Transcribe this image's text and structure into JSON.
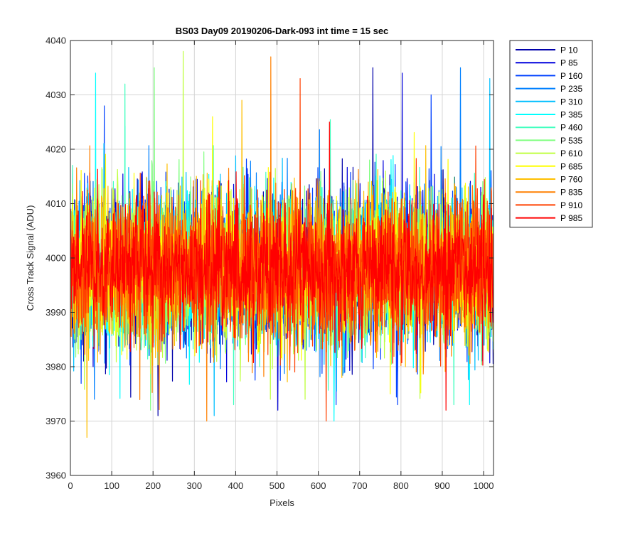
{
  "chart_data": {
    "type": "line",
    "title": "BS03 Day09 20190206-Dark-093 int time = 15 sec",
    "xlabel": "Pixels",
    "ylabel": "Cross Track Signal (ADU)",
    "xlim": [
      0,
      1024
    ],
    "ylim": [
      3960,
      4040
    ],
    "xticks": [
      0,
      100,
      200,
      300,
      400,
      500,
      600,
      700,
      800,
      900,
      1000
    ],
    "yticks": [
      3960,
      3970,
      3980,
      3990,
      4000,
      4010,
      4020,
      4030,
      4040
    ],
    "grid": true,
    "legend_position": "outside-right",
    "x_range": [
      1,
      1024
    ],
    "series": [
      {
        "name": "P 10",
        "color": "#0000aa",
        "mean": 3998,
        "spread": 9,
        "extremes": {
          "max": 4035,
          "min": 3971
        }
      },
      {
        "name": "P 85",
        "color": "#0000dd",
        "mean": 3998,
        "spread": 9,
        "extremes": {
          "max": 4034,
          "min": 3972
        }
      },
      {
        "name": "P 160",
        "color": "#0040ff",
        "mean": 3998,
        "spread": 9,
        "extremes": {
          "max": 4030,
          "min": 3973
        }
      },
      {
        "name": "P 235",
        "color": "#0080ff",
        "mean": 3998,
        "spread": 9,
        "extremes": {
          "max": 4035,
          "min": 3974
        }
      },
      {
        "name": "P 310",
        "color": "#00bfff",
        "mean": 3998,
        "spread": 9,
        "extremes": {
          "max": 4033,
          "min": 3971
        }
      },
      {
        "name": "P 385",
        "color": "#00ffff",
        "mean": 3998,
        "spread": 9,
        "extremes": {
          "max": 4034,
          "min": 3970
        }
      },
      {
        "name": "P 460",
        "color": "#40ffbf",
        "mean": 3998,
        "spread": 9,
        "extremes": {
          "max": 4032,
          "min": 3973
        }
      },
      {
        "name": "P 535",
        "color": "#80ff80",
        "mean": 3998,
        "spread": 9,
        "extremes": {
          "max": 4035,
          "min": 3972
        }
      },
      {
        "name": "P 610",
        "color": "#bfff40",
        "mean": 3998,
        "spread": 9,
        "extremes": {
          "max": 4038,
          "min": 3974
        }
      },
      {
        "name": "P 685",
        "color": "#ffff00",
        "mean": 3998,
        "spread": 9,
        "extremes": {
          "max": 4026,
          "min": 3975
        }
      },
      {
        "name": "P 760",
        "color": "#ffbf00",
        "mean": 3998,
        "spread": 9,
        "extremes": {
          "max": 4029,
          "min": 3967
        }
      },
      {
        "name": "P 835",
        "color": "#ff8000",
        "mean": 3998,
        "spread": 9,
        "extremes": {
          "max": 4037,
          "min": 3970
        }
      },
      {
        "name": "P 910",
        "color": "#ff4000",
        "mean": 3998,
        "spread": 9,
        "extremes": {
          "max": 4033,
          "min": 3970
        }
      },
      {
        "name": "P 985",
        "color": "#ff0000",
        "mean": 3998,
        "spread": 8,
        "extremes": {
          "max": 4025,
          "min": 3972
        }
      }
    ]
  }
}
